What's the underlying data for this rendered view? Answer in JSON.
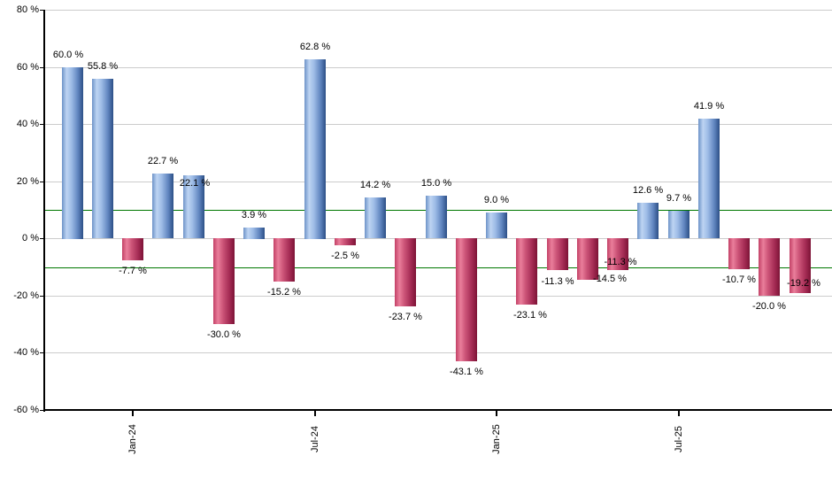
{
  "chart_data": {
    "type": "bar",
    "title": "",
    "xlabel": "",
    "ylabel": "",
    "values": [
      60.0,
      55.8,
      -7.7,
      22.7,
      22.1,
      -30.0,
      3.9,
      -15.2,
      62.8,
      -2.5,
      14.2,
      -23.7,
      15.0,
      -43.1,
      9.0,
      -23.1,
      -11.3,
      -14.5,
      -11.3,
      12.6,
      9.7,
      41.9,
      -10.7,
      -20.0,
      -19.2
    ],
    "value_labels": [
      "60.0 %",
      "55.8 %",
      "-7.7 %",
      "22.7 %",
      "22.1 %",
      "-30.0 %",
      "3.9 %",
      "-15.2 %",
      "62.8 %",
      "-2.5 %",
      "14.2 %",
      "-23.7 %",
      "15.0 %",
      "-43.1 %",
      "9.0 %",
      "-23.1 %",
      "-11.3 %",
      "-14.5 %",
      "-11.3 %",
      "12.6 %",
      "9.7 %",
      "41.9 %",
      "-10.7 %",
      "-20.0 %",
      "-19.2 %"
    ],
    "x_ticks": [
      {
        "label": "Jan-24",
        "index": 2
      },
      {
        "label": "Jul-24",
        "index": 8
      },
      {
        "label": "Jan-25",
        "index": 14
      },
      {
        "label": "Jul-25",
        "index": 20
      }
    ],
    "y_ticks": [
      80,
      60,
      40,
      20,
      0,
      -20,
      -40,
      -60
    ],
    "y_tick_labels": [
      "80 %",
      "60 %",
      "40 %",
      "20 %",
      "0 %",
      "-20 %",
      "-40 %",
      "-60 %"
    ],
    "ylim": [
      -60,
      80
    ],
    "gridlines": [
      80,
      60,
      40,
      20,
      0,
      -20,
      -40
    ],
    "threshold_lines": [
      10,
      -10
    ],
    "legend": "none",
    "grid": "on",
    "colors": {
      "positive_bar_left": "#6e93c8",
      "positive_bar_highlight": "#bdd4f2",
      "positive_bar_right": "#2c4f86",
      "negative_bar_left": "#c24066",
      "negative_bar_highlight": "#ea7e9b",
      "negative_bar_right": "#7d1336",
      "threshold_line": "#007700",
      "gridline": "#cccccc",
      "axis": "#000000",
      "text": "#000000",
      "background": "#ffffff"
    }
  }
}
